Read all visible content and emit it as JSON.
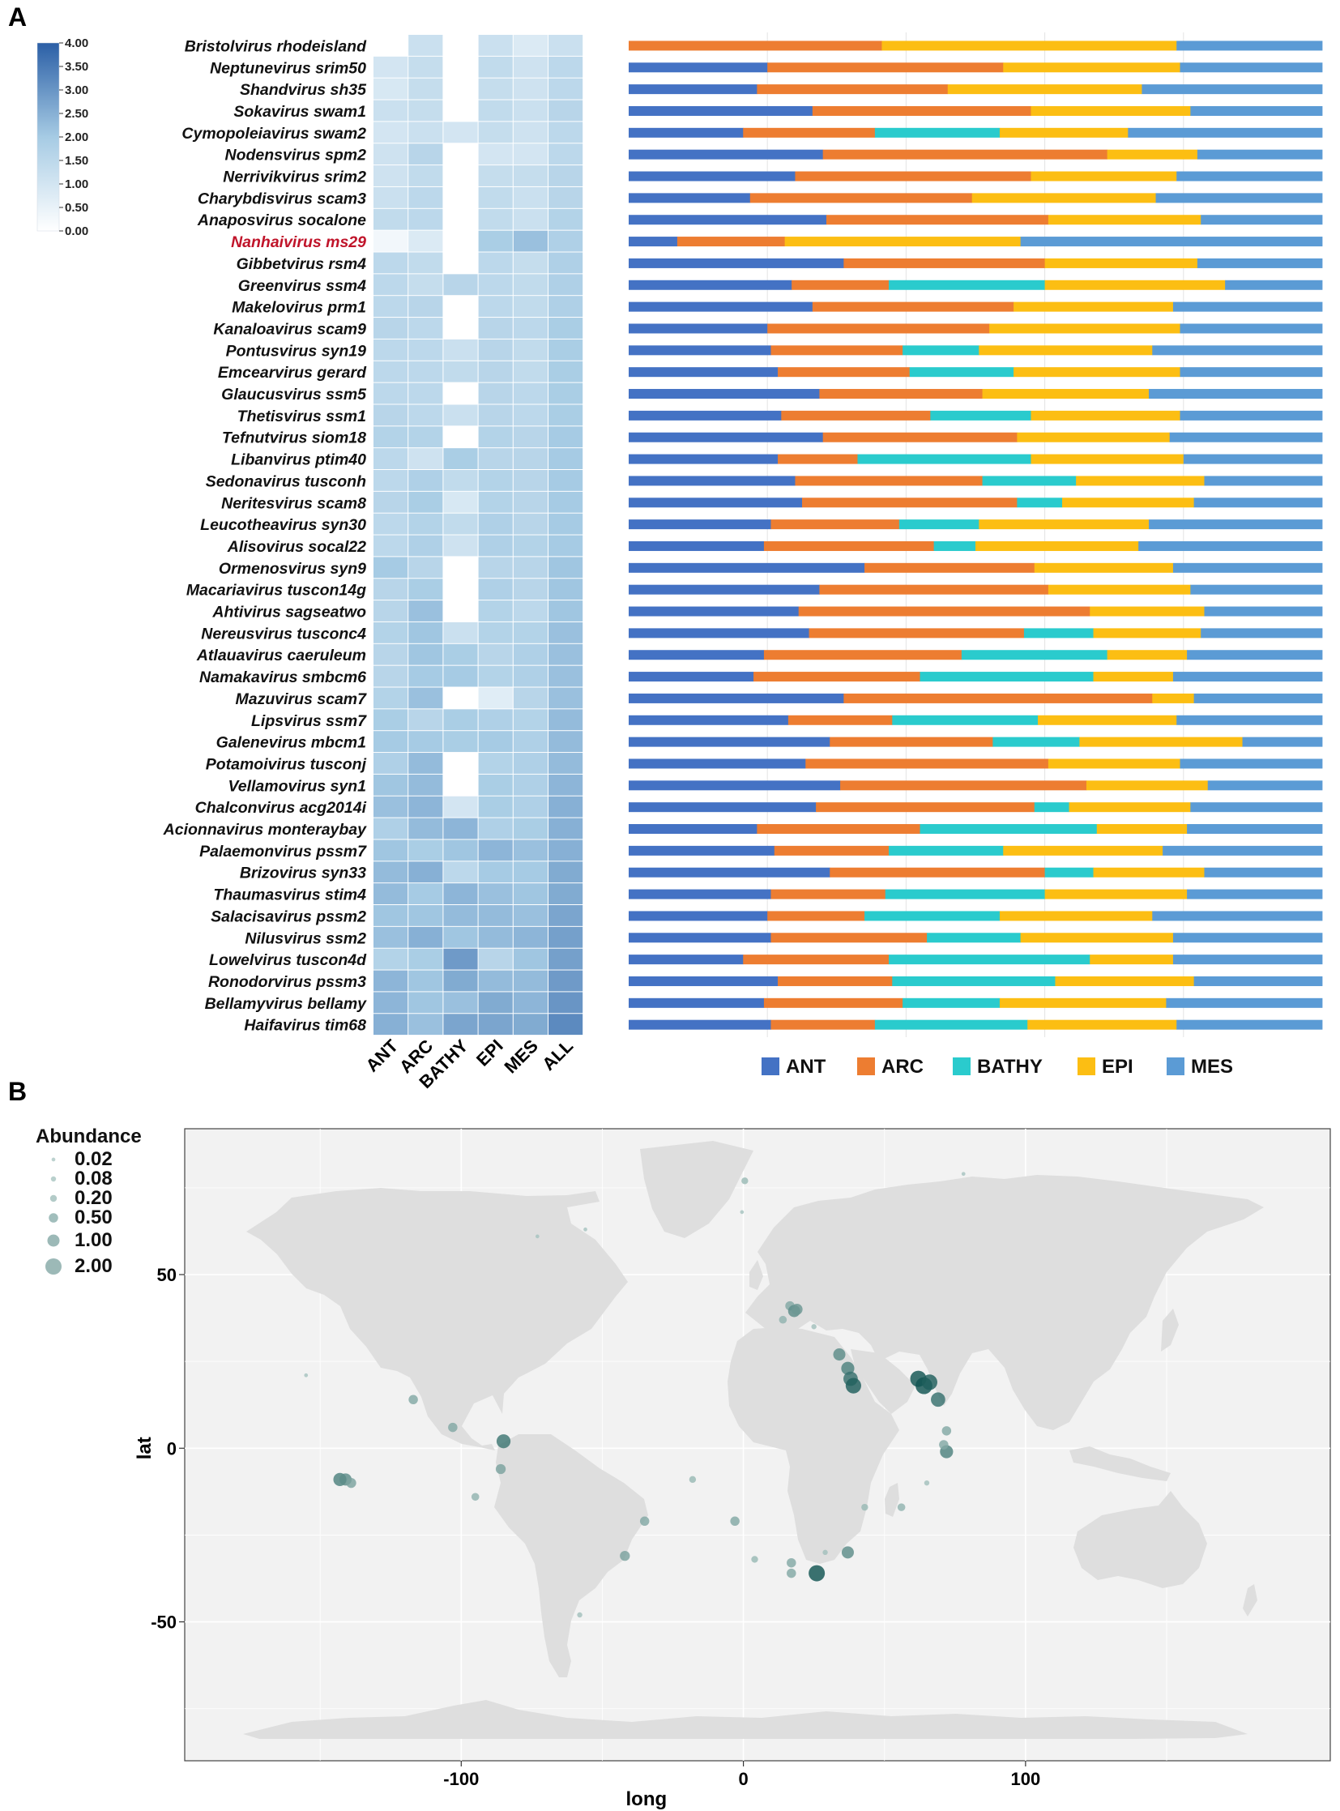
{
  "panels": {
    "a": "A",
    "b": "B"
  },
  "chart_data": [
    {
      "type": "heatmap",
      "panel": "A",
      "columns": [
        "ANT",
        "ARC",
        "BATHY",
        "EPI",
        "MES",
        "ALL"
      ],
      "colorbar": {
        "min": 0,
        "max": 4,
        "ticks": [
          "4.00",
          "3.50",
          "3.00",
          "2.50",
          "2.00",
          "1.50",
          "1.00",
          "0.50",
          "0.00"
        ]
      },
      "highlight_row": "Nanhaivirus ms29",
      "rows": [
        {
          "name": "Bristolvirus rhodeisland",
          "values": [
            null,
            1.2,
            null,
            1.2,
            0.8,
            1.2
          ]
        },
        {
          "name": "Neptunevirus srim50",
          "values": [
            1.0,
            1.3,
            null,
            1.4,
            1.1,
            1.5
          ]
        },
        {
          "name": "Shandvirus sh35",
          "values": [
            0.9,
            1.3,
            null,
            1.3,
            1.1,
            1.5
          ]
        },
        {
          "name": "Sokavirus swam1",
          "values": [
            1.2,
            1.3,
            null,
            1.4,
            1.2,
            1.6
          ]
        },
        {
          "name": "Cymopoleiavirus swam2",
          "values": [
            1.0,
            1.2,
            1.0,
            1.3,
            1.1,
            1.5
          ]
        },
        {
          "name": "Nodensvirus spm2",
          "values": [
            1.1,
            1.6,
            null,
            1.0,
            1.0,
            1.5
          ]
        },
        {
          "name": "Nerrivikvirus srim2",
          "values": [
            1.1,
            1.4,
            null,
            1.3,
            1.3,
            1.6
          ]
        },
        {
          "name": "Charybdisvirus scam3",
          "values": [
            1.2,
            1.5,
            null,
            1.4,
            1.2,
            1.6
          ]
        },
        {
          "name": "Anaposvirus socalone",
          "values": [
            1.4,
            1.5,
            null,
            1.4,
            1.2,
            1.7
          ]
        },
        {
          "name": "Nanhaivirus ms29",
          "values": [
            0.3,
            0.8,
            null,
            1.9,
            2.2,
            1.8
          ]
        },
        {
          "name": "Gibbetvirus rsm4",
          "values": [
            1.5,
            1.4,
            null,
            1.5,
            1.3,
            1.8
          ]
        },
        {
          "name": "Greenvirus ssm4",
          "values": [
            1.5,
            1.3,
            1.6,
            1.5,
            1.4,
            1.8
          ]
        },
        {
          "name": "Makelovirus prm1",
          "values": [
            1.5,
            1.6,
            null,
            1.5,
            1.4,
            1.8
          ]
        },
        {
          "name": "Kanaloavirus scam9",
          "values": [
            1.6,
            1.5,
            null,
            1.6,
            1.5,
            1.9
          ]
        },
        {
          "name": "Pontusvirus syn19",
          "values": [
            1.5,
            1.5,
            1.2,
            1.6,
            1.4,
            1.9
          ]
        },
        {
          "name": "Emcearvirus gerard",
          "values": [
            1.5,
            1.5,
            1.4,
            1.6,
            1.4,
            1.9
          ]
        },
        {
          "name": "Glaucusvirus ssm5",
          "values": [
            1.5,
            1.5,
            null,
            1.6,
            1.5,
            1.9
          ]
        },
        {
          "name": "Thetisvirus ssm1",
          "values": [
            1.6,
            1.5,
            1.2,
            1.6,
            1.5,
            1.9
          ]
        },
        {
          "name": "Tefnutvirus siom18",
          "values": [
            1.7,
            1.7,
            null,
            1.7,
            1.6,
            2.0
          ]
        },
        {
          "name": "Libanvirus ptim40",
          "values": [
            1.5,
            1.1,
            1.9,
            1.6,
            1.6,
            2.0
          ]
        },
        {
          "name": "Sedonavirus tusconh",
          "values": [
            1.5,
            1.8,
            1.4,
            1.7,
            1.6,
            2.0
          ]
        },
        {
          "name": "Neritesvirus scam8",
          "values": [
            1.6,
            1.9,
            0.9,
            1.7,
            1.6,
            2.0
          ]
        },
        {
          "name": "Leucotheavirus syn30",
          "values": [
            1.5,
            1.7,
            1.4,
            1.8,
            1.6,
            2.0
          ]
        },
        {
          "name": "Alisovirus socal22",
          "values": [
            1.5,
            1.8,
            1.1,
            1.8,
            1.7,
            2.0
          ]
        },
        {
          "name": "Ormenosvirus syn9",
          "values": [
            2.0,
            1.6,
            null,
            1.6,
            1.6,
            2.1
          ]
        },
        {
          "name": "Macariavirus tuscon14g",
          "values": [
            1.6,
            1.9,
            null,
            1.8,
            1.6,
            2.1
          ]
        },
        {
          "name": "Ahtivirus sagseatwo",
          "values": [
            1.6,
            2.2,
            null,
            1.7,
            1.5,
            2.1
          ]
        },
        {
          "name": "Nereusvirus tusconc4",
          "values": [
            1.7,
            2.1,
            1.2,
            1.7,
            1.7,
            2.2
          ]
        },
        {
          "name": "Atlauavirus caeruleum",
          "values": [
            1.6,
            2.1,
            1.9,
            1.6,
            1.8,
            2.2
          ]
        },
        {
          "name": "Namakavirus smbcm6",
          "values": [
            1.6,
            2.0,
            2.0,
            1.7,
            1.8,
            2.2
          ]
        },
        {
          "name": "Mazuvirus scam7",
          "values": [
            1.7,
            2.2,
            null,
            0.7,
            1.6,
            2.2
          ]
        },
        {
          "name": "Lipsvirus ssm7",
          "values": [
            1.9,
            1.6,
            1.9,
            1.8,
            1.7,
            2.3
          ]
        },
        {
          "name": "Galenevirus mbcm1",
          "values": [
            2.0,
            2.0,
            1.9,
            2.0,
            1.8,
            2.3
          ]
        },
        {
          "name": "Potamoivirus tusconj",
          "values": [
            1.8,
            2.3,
            null,
            1.7,
            1.8,
            2.3
          ]
        },
        {
          "name": "Vellamovirus syn1",
          "values": [
            2.1,
            2.3,
            null,
            1.9,
            1.8,
            2.4
          ]
        },
        {
          "name": "Chalconvirus acg2014i",
          "values": [
            2.2,
            2.4,
            1.0,
            1.9,
            1.8,
            2.5
          ]
        },
        {
          "name": "Acionnavirus monteraybay",
          "values": [
            1.8,
            2.3,
            2.4,
            1.8,
            1.9,
            2.5
          ]
        },
        {
          "name": "Palaemonvirus pssm7",
          "values": [
            2.1,
            1.9,
            2.1,
            2.4,
            2.2,
            2.5
          ]
        },
        {
          "name": "Brizovirus syn33",
          "values": [
            2.3,
            2.5,
            1.5,
            2.0,
            2.0,
            2.6
          ]
        },
        {
          "name": "Thaumasvirus stim4",
          "values": [
            2.3,
            2.0,
            2.4,
            2.2,
            2.1,
            2.6
          ]
        },
        {
          "name": "Salacisavirus pssm2",
          "values": [
            2.1,
            2.1,
            2.3,
            2.3,
            2.2,
            2.7
          ]
        },
        {
          "name": "Nilusvirus ssm2",
          "values": [
            2.2,
            2.5,
            2.1,
            2.3,
            2.4,
            2.8
          ]
        },
        {
          "name": "Lowelvirus tuscon4d",
          "values": [
            1.7,
            1.9,
            2.9,
            1.6,
            2.1,
            2.8
          ]
        },
        {
          "name": "Ronodorvirus pssm3",
          "values": [
            2.4,
            2.1,
            2.6,
            2.3,
            2.3,
            2.9
          ]
        },
        {
          "name": "Bellamyvirus bellamy",
          "values": [
            2.4,
            2.1,
            2.2,
            2.6,
            2.4,
            3.0
          ]
        },
        {
          "name": "Haifavirus tim68",
          "values": [
            2.5,
            2.2,
            2.7,
            2.7,
            2.6,
            3.2
          ]
        }
      ]
    },
    {
      "type": "bar",
      "orientation": "horizontal",
      "stacked": "percent",
      "panel": "A",
      "series_names": [
        "ANT",
        "ARC",
        "BATHY",
        "EPI",
        "MES"
      ],
      "series_colors": [
        "#4472c4",
        "#ed7d31",
        "#2acbcd",
        "#fcbe13",
        "#5b9bd5"
      ],
      "xlim": [
        0,
        100
      ],
      "gridlines": [
        20,
        40,
        60,
        80
      ],
      "legend_position": "bottom",
      "rows": [
        [
          0,
          36.5,
          0,
          42.5,
          21
        ],
        [
          20,
          34,
          0,
          25.5,
          20.5
        ],
        [
          18.5,
          27.5,
          0,
          28,
          26
        ],
        [
          26.5,
          31.5,
          0,
          23,
          19
        ],
        [
          16.5,
          19,
          18,
          18.5,
          28
        ],
        [
          28,
          41,
          0,
          13,
          18
        ],
        [
          24,
          34,
          0,
          21,
          21
        ],
        [
          17.5,
          32,
          0,
          26.5,
          24
        ],
        [
          28.5,
          32,
          0,
          22,
          17.5
        ],
        [
          7,
          15.5,
          0,
          34,
          43.5
        ],
        [
          31,
          29,
          0,
          22,
          18
        ],
        [
          23.5,
          14,
          22.5,
          26,
          14
        ],
        [
          26.5,
          29,
          0,
          23,
          21.5
        ],
        [
          20,
          32,
          0,
          27.5,
          20.5
        ],
        [
          20.5,
          19,
          11,
          25,
          24.5
        ],
        [
          21.5,
          19,
          15,
          24,
          20.5
        ],
        [
          27.5,
          23.5,
          0,
          24,
          25
        ],
        [
          22,
          21.5,
          14.5,
          21.5,
          20.5
        ],
        [
          28,
          28,
          0,
          22,
          22
        ],
        [
          21.5,
          11.5,
          25,
          22,
          20
        ],
        [
          24,
          27,
          13.5,
          18.5,
          17
        ],
        [
          25,
          31,
          6.5,
          19,
          18.5
        ],
        [
          20.5,
          18.5,
          11.5,
          24.5,
          25
        ],
        [
          19.5,
          24.5,
          6,
          23.5,
          26.5
        ],
        [
          34,
          24.5,
          0,
          20,
          21.5
        ],
        [
          27.5,
          33,
          0,
          20.5,
          19
        ],
        [
          24.5,
          42,
          0,
          16.5,
          17
        ],
        [
          26,
          31,
          10,
          15.5,
          17.5
        ],
        [
          19.5,
          28.5,
          21,
          11.5,
          19.5
        ],
        [
          18,
          24,
          25,
          11.5,
          21.5
        ],
        [
          31,
          44.5,
          0,
          6,
          18.5
        ],
        [
          23,
          15,
          21,
          20,
          21
        ],
        [
          29,
          23.5,
          12.5,
          23.5,
          11.5
        ],
        [
          25.5,
          35,
          0,
          19,
          20.5
        ],
        [
          30.5,
          35.5,
          0,
          17.5,
          16.5
        ],
        [
          27,
          31.5,
          5,
          17.5,
          19
        ],
        [
          18.5,
          23.5,
          25.5,
          13,
          19.5
        ],
        [
          21,
          16.5,
          16.5,
          23,
          23
        ],
        [
          29,
          31,
          7,
          16,
          17
        ],
        [
          20.5,
          16.5,
          23,
          20.5,
          19.5
        ],
        [
          20,
          14,
          19.5,
          22,
          24.5
        ],
        [
          20.5,
          22.5,
          13.5,
          22,
          21.5
        ],
        [
          16.5,
          21,
          29,
          12,
          21.5
        ],
        [
          21.5,
          16.5,
          23.5,
          20,
          18.5
        ],
        [
          19.5,
          20,
          14,
          24,
          22.5
        ],
        [
          20.5,
          15,
          22,
          21.5,
          21
        ]
      ]
    },
    {
      "type": "scatter",
      "panel": "B",
      "xlabel": "long",
      "ylabel": "lat",
      "xticks": [
        -100,
        0,
        100
      ],
      "yticks": [
        50,
        0,
        -50
      ],
      "xlim": [
        -198,
        208
      ],
      "ylim": [
        -90,
        92
      ],
      "legend_title": "Abundance",
      "legend_values": [
        "0.02",
        "0.08",
        "0.20",
        "0.50",
        "1.00",
        "2.00"
      ],
      "points": [
        {
          "lon": 0.5,
          "lat": 77,
          "abundance": 0.2
        },
        {
          "lon": -0.5,
          "lat": 68,
          "abundance": 0.02
        },
        {
          "lon": -56,
          "lat": 63,
          "abundance": 0.02
        },
        {
          "lon": -73,
          "lat": 61,
          "abundance": 0.02
        },
        {
          "lon": 78,
          "lat": 79,
          "abundance": 0.02
        },
        {
          "lon": -155,
          "lat": 21,
          "abundance": 0.02
        },
        {
          "lon": 16.5,
          "lat": 41,
          "abundance": 0.5
        },
        {
          "lon": 18,
          "lat": 39.5,
          "abundance": 1.0
        },
        {
          "lon": 19,
          "lat": 40,
          "abundance": 0.8
        },
        {
          "lon": 14,
          "lat": 37,
          "abundance": 0.3
        },
        {
          "lon": 25,
          "lat": 35,
          "abundance": 0.08
        },
        {
          "lon": 34,
          "lat": 27,
          "abundance": 1.0
        },
        {
          "lon": 37,
          "lat": 23,
          "abundance": 1.2
        },
        {
          "lon": 38,
          "lat": 20,
          "abundance": 1.5
        },
        {
          "lon": 39,
          "lat": 18,
          "abundance": 1.8
        },
        {
          "lon": 62,
          "lat": 20,
          "abundance": 2.0
        },
        {
          "lon": 64,
          "lat": 18,
          "abundance": 2.2
        },
        {
          "lon": 66,
          "lat": 19,
          "abundance": 1.8
        },
        {
          "lon": 69,
          "lat": 14,
          "abundance": 1.5
        },
        {
          "lon": 72,
          "lat": 5,
          "abundance": 0.5
        },
        {
          "lon": 72,
          "lat": -1,
          "abundance": 1.2
        },
        {
          "lon": 71,
          "lat": 1,
          "abundance": 0.5
        },
        {
          "lon": 65,
          "lat": -10,
          "abundance": 0.08
        },
        {
          "lon": -117,
          "lat": 14,
          "abundance": 0.5
        },
        {
          "lon": -103,
          "lat": 6,
          "abundance": 0.5
        },
        {
          "lon": -85,
          "lat": 2,
          "abundance": 1.4
        },
        {
          "lon": -86,
          "lat": -6,
          "abundance": 0.6
        },
        {
          "lon": -143,
          "lat": -9,
          "abundance": 1.2
        },
        {
          "lon": -141,
          "lat": -9,
          "abundance": 1.0
        },
        {
          "lon": -139,
          "lat": -10,
          "abundance": 0.6
        },
        {
          "lon": -95,
          "lat": -14,
          "abundance": 0.3
        },
        {
          "lon": -18,
          "lat": -9,
          "abundance": 0.2
        },
        {
          "lon": -35,
          "lat": -21,
          "abundance": 0.5
        },
        {
          "lon": -42,
          "lat": -31,
          "abundance": 0.6
        },
        {
          "lon": -3,
          "lat": -21,
          "abundance": 0.5
        },
        {
          "lon": -58,
          "lat": -48,
          "abundance": 0.08
        },
        {
          "lon": 43,
          "lat": -17,
          "abundance": 0.2
        },
        {
          "lon": 56,
          "lat": -17,
          "abundance": 0.3
        },
        {
          "lon": 37,
          "lat": -30,
          "abundance": 1.0
        },
        {
          "lon": 17,
          "lat": -33,
          "abundance": 0.5
        },
        {
          "lon": 17,
          "lat": -36,
          "abundance": 0.5
        },
        {
          "lon": 26,
          "lat": -36,
          "abundance": 2.0
        },
        {
          "lon": 4,
          "lat": -32,
          "abundance": 0.2
        },
        {
          "lon": 29,
          "lat": -30,
          "abundance": 0.08
        }
      ]
    }
  ]
}
